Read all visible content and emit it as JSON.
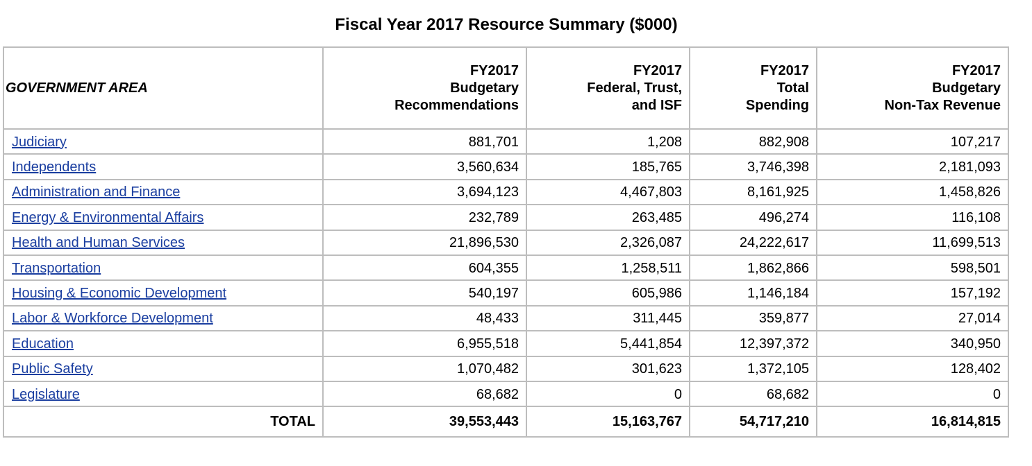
{
  "title": "Fiscal Year 2017 Resource Summary ($000)",
  "columns": {
    "area": "GOVERNMENT AREA",
    "c1": [
      "FY2017",
      "Budgetary",
      "Recommendations"
    ],
    "c2": [
      "FY2017",
      "Federal, Trust,",
      "and ISF"
    ],
    "c3": [
      "FY2017",
      "Total",
      "Spending"
    ],
    "c4": [
      "FY2017",
      "Budgetary",
      "Non-Tax Revenue"
    ]
  },
  "rows": [
    {
      "name": "Judiciary",
      "v": [
        "881,701",
        "1,208",
        "882,908",
        "107,217"
      ]
    },
    {
      "name": "Independents",
      "v": [
        "3,560,634",
        "185,765",
        "3,746,398",
        "2,181,093"
      ]
    },
    {
      "name": "Administration and Finance",
      "v": [
        "3,694,123",
        "4,467,803",
        "8,161,925",
        "1,458,826"
      ]
    },
    {
      "name": "Energy & Environmental Affairs",
      "v": [
        "232,789",
        "263,485",
        "496,274",
        "116,108"
      ]
    },
    {
      "name": "Health and Human Services",
      "v": [
        "21,896,530",
        "2,326,087",
        "24,222,617",
        "11,699,513"
      ]
    },
    {
      "name": "Transportation",
      "v": [
        "604,355",
        "1,258,511",
        "1,862,866",
        "598,501"
      ]
    },
    {
      "name": "Housing & Economic Development",
      "v": [
        "540,197",
        "605,986",
        "1,146,184",
        "157,192"
      ]
    },
    {
      "name": "Labor & Workforce Development",
      "v": [
        "48,433",
        "311,445",
        "359,877",
        "27,014"
      ]
    },
    {
      "name": "Education",
      "v": [
        "6,955,518",
        "5,441,854",
        "12,397,372",
        "340,950"
      ]
    },
    {
      "name": "Public Safety",
      "v": [
        "1,070,482",
        "301,623",
        "1,372,105",
        "128,402"
      ]
    },
    {
      "name": "Legislature",
      "v": [
        "68,682",
        "0",
        "68,682",
        "0"
      ]
    }
  ],
  "total": {
    "label": "TOTAL",
    "v": [
      "39,553,443",
      "15,163,767",
      "54,717,210",
      "16,814,815"
    ]
  },
  "colors": {
    "link": "#1a3ea0",
    "border": "#bdbdbd"
  }
}
